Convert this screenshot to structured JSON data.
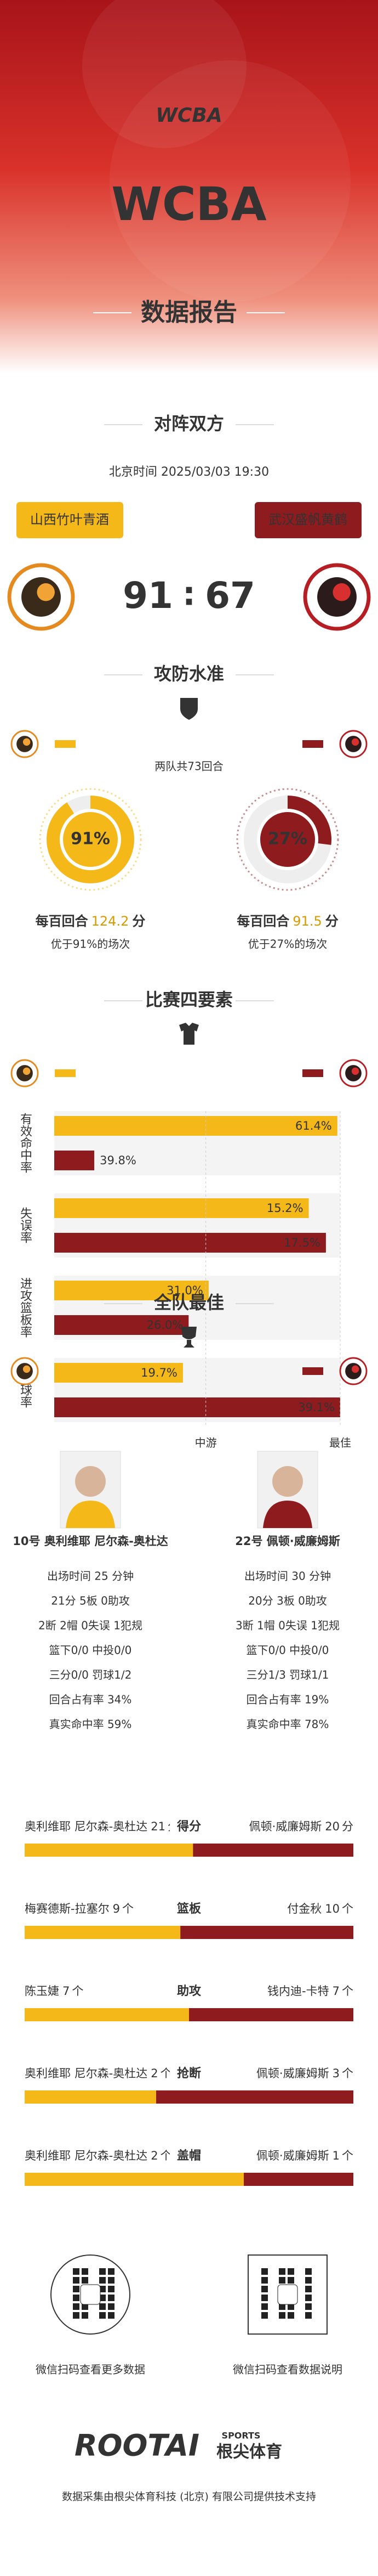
{
  "header": {
    "logo": "WCBA",
    "title": "WCBA",
    "subtitle": "数据报告"
  },
  "matchup": {
    "title": "对阵双方",
    "time": "北京时间 2025/03/03 19:30",
    "separator": ":",
    "home": {
      "name": "山西竹叶青酒",
      "score": "91"
    },
    "away": {
      "name": "武汉盛帆黄鹤",
      "score": "67"
    }
  },
  "level": {
    "title": "攻防水准",
    "possessions": "两队共73回合",
    "home": {
      "prefix": "每百回合",
      "points": "124.2",
      "unit": "分",
      "rating": {
        "value": 91,
        "label": "91%"
      },
      "note": "优于91%的场次"
    },
    "away": {
      "prefix": "每百回合",
      "points": "91.5",
      "unit": "分",
      "rating": {
        "value": 27,
        "label": "27%"
      },
      "note": "优于27%的场次"
    }
  },
  "four_factors": {
    "title": "比赛四要素",
    "scale": [
      {
        "value": 53,
        "label": "中游"
      },
      {
        "value": 100,
        "label": "最佳"
      }
    ],
    "rows": [
      {
        "label": "有效命中率",
        "home": {
          "value": "61.4%",
          "rating": 99
        },
        "away": {
          "value": "39.8%",
          "rating": 14
        }
      },
      {
        "label": "失误率",
        "home": {
          "value": "15.2%",
          "rating": 89
        },
        "away": {
          "value": "17.5%",
          "rating": 95
        }
      },
      {
        "label": "进攻篮板率",
        "home": {
          "value": "31.0%",
          "rating": 54
        },
        "away": {
          "value": "26.0%",
          "rating": 47
        }
      },
      {
        "label": "罚球率",
        "home": {
          "value": "19.7%",
          "rating": 45
        },
        "away": {
          "value": "39.1%",
          "rating": 100
        }
      }
    ]
  },
  "best": {
    "title": "全队最佳",
    "players": [
      {
        "name": "10号 奥利维耶 尼尔森-奥杜达",
        "lines": [
          "出场时间 25 分钟",
          "21分  5板  0助攻",
          "2断  2帽  0失误  1犯规",
          "篮下0/0  中投0/0",
          "三分0/0  罚球1/2",
          "回合占有率 34%",
          "真实命中率 59%"
        ]
      },
      {
        "name": "22号 佩顿·威廉姆斯",
        "lines": [
          "出场时间 30 分钟",
          "20分  3板  0助攻",
          "3断  1帽  0失误  1犯规",
          "篮下0/0  中投0/0",
          "三分1/3  罚球1/1",
          "回合占有率 19%",
          "真实命中率 78%"
        ]
      }
    ],
    "leaders": [
      {
        "stat": "得分",
        "home": {
          "name": "奥利维耶 尼尔森-奥杜达",
          "value": 21,
          "unit": "分"
        },
        "away": {
          "name": "佩顿·威廉姆斯",
          "value": 20,
          "unit": "分"
        }
      },
      {
        "stat": "篮板",
        "home": {
          "name": "梅赛德斯-拉塞尔",
          "value": 9,
          "unit": "个"
        },
        "away": {
          "name": "付金秋",
          "value": 10,
          "unit": "个"
        }
      },
      {
        "stat": "助攻",
        "home": {
          "name": "陈玉婕",
          "value": 7,
          "unit": "个"
        },
        "away": {
          "name": "钱内迪-卡特",
          "value": 7,
          "unit": "个"
        }
      },
      {
        "stat": "抢断",
        "home": {
          "name": "奥利维耶 尼尔森-奥杜达",
          "value": 2,
          "unit": "个"
        },
        "away": {
          "name": "佩顿·威廉姆斯",
          "value": 3,
          "unit": "个"
        }
      },
      {
        "stat": "盖帽",
        "home": {
          "name": "奥利维耶 尼尔森-奥杜达",
          "value": 2,
          "unit": "个"
        },
        "away": {
          "name": "佩顿·威廉姆斯",
          "value": 1,
          "unit": "个"
        }
      }
    ]
  },
  "footer": {
    "qr": [
      "微信扫码查看更多数据",
      "微信扫码查看数据说明"
    ],
    "brand": "ROOTAI",
    "brand_sports": "SPORTS",
    "brand_cn": "根尖体育",
    "credit": "数据采集由根尖体育科技 (北京) 有限公司提供技术支持"
  }
}
